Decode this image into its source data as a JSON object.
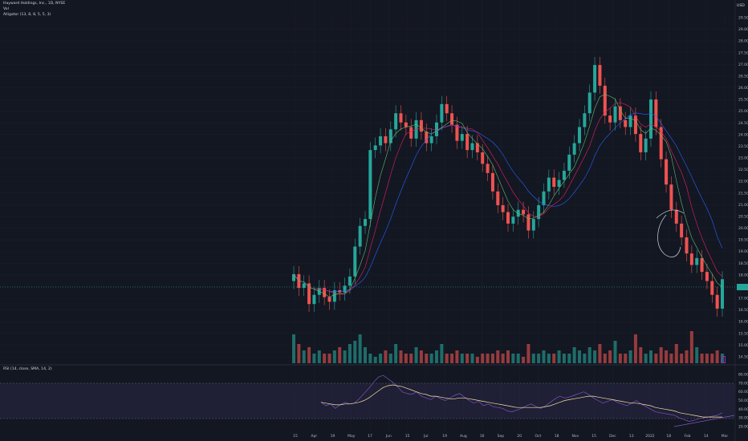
{
  "header": {
    "title": "Hayward Holdings, Inc., 1D, NYSE",
    "vol_label": "Vol",
    "alligator_label": "Alligator (13, 8, 8, 5, 5, 3)",
    "rsi_label": "RSI (14, close, SMA, 14, 2)",
    "currency": "USD"
  },
  "colors": {
    "background": "#131722",
    "up": "#26a69a",
    "down": "#ef5350",
    "jaw": "#2962ff",
    "teeth": "#e91e63",
    "lips": "#66bb6a",
    "rsi": "#7e57c2",
    "rsi_ma": "#f5e6a0"
  },
  "chart_data": [
    {
      "type": "candlestick",
      "title": "Hayward Holdings, Inc., 1D, NYSE",
      "x_ticks": [
        "15",
        "Apr",
        "19",
        "May",
        "17",
        "Jun",
        "15",
        "Jul",
        "19",
        "Aug",
        "16",
        "Sep",
        "20",
        "Oct",
        "18",
        "Nov",
        "15",
        "Dec",
        "13",
        "2022",
        "18",
        "Feb",
        "14",
        "Mar"
      ],
      "y_ticks": [
        "29.50",
        "29.00",
        "28.00",
        "27.50",
        "27.00",
        "26.50",
        "26.00",
        "25.50",
        "25.00",
        "24.50",
        "24.00",
        "23.50",
        "23.00",
        "22.50",
        "22.00",
        "21.50",
        "21.00",
        "20.50",
        "20.00",
        "19.50",
        "19.00",
        "18.50",
        "18.00",
        "17.50",
        "17.00",
        "16.50",
        "16.00",
        "15.50",
        "15.00",
        "14.50"
      ],
      "ylim": [
        14.5,
        29.5
      ],
      "last_price": 17.98,
      "annotations": [
        "hand-drawn curve near Jan 2022 peak",
        "rising support line on RSI"
      ],
      "series_close": [
        18.2,
        17.6,
        17.8,
        16.9,
        17.3,
        17.6,
        17.2,
        17.0,
        17.5,
        17.4,
        17.7,
        18.1,
        19.4,
        20.3,
        20.6,
        23.6,
        23.8,
        24.2,
        23.9,
        24.5,
        25.2,
        24.8,
        24.6,
        24.1,
        24.9,
        24.4,
        23.9,
        24.2,
        24.8,
        25.6,
        25.2,
        24.7,
        24.0,
        24.3,
        23.6,
        23.9,
        23.5,
        23.0,
        22.6,
        21.8,
        21.2,
        20.9,
        20.4,
        20.7,
        21.0,
        20.8,
        20.1,
        20.6,
        21.2,
        21.8,
        22.4,
        22.0,
        22.3,
        22.7,
        23.4,
        23.9,
        24.6,
        25.2,
        26.1,
        27.3,
        26.4,
        25.1,
        24.8,
        25.5,
        24.9,
        24.6,
        25.1,
        24.3,
        23.5,
        24.1,
        25.8,
        24.6,
        23.2,
        22.1,
        21.0,
        20.4,
        19.8,
        19.1,
        18.6,
        18.9,
        18.3,
        17.9,
        17.3,
        16.7,
        17.98
      ],
      "volume_relative": [
        0.9,
        0.6,
        0.4,
        0.5,
        0.3,
        0.4,
        0.3,
        0.3,
        0.4,
        0.5,
        0.4,
        0.6,
        0.7,
        0.9,
        0.5,
        0.3,
        0.2,
        0.3,
        0.4,
        0.3,
        0.6,
        0.4,
        0.3,
        0.3,
        0.5,
        0.4,
        0.3,
        0.3,
        0.4,
        0.6,
        0.3,
        0.3,
        0.4,
        0.3,
        0.3,
        0.3,
        0.2,
        0.3,
        0.3,
        0.3,
        0.4,
        0.3,
        0.4,
        0.3,
        0.3,
        0.2,
        0.6,
        0.3,
        0.3,
        0.4,
        0.3,
        0.3,
        0.4,
        0.3,
        0.3,
        0.5,
        0.4,
        0.3,
        0.5,
        0.4,
        0.6,
        0.3,
        0.4,
        0.7,
        0.3,
        0.3,
        0.4,
        0.9,
        0.5,
        0.3,
        0.4,
        0.3,
        0.5,
        0.4,
        0.3,
        0.6,
        0.3,
        0.4,
        1.0,
        0.5,
        0.3,
        0.3,
        0.3,
        0.4,
        0.3
      ]
    },
    {
      "type": "line",
      "title": "RSI (14, close, SMA, 14, 2)",
      "y_ticks": [
        "80.00",
        "70.00",
        "60.00",
        "50.00",
        "40.00",
        "30.00",
        "20.00"
      ],
      "ylim": [
        20,
        80
      ],
      "bands": [
        30,
        70
      ],
      "series": [
        {
          "name": "RSI",
          "values": [
            48,
            44,
            46,
            41,
            45,
            48,
            46,
            47,
            52,
            58,
            64,
            71,
            77,
            79,
            75,
            71,
            66,
            60,
            58,
            57,
            60,
            55,
            53,
            51,
            55,
            52,
            50,
            53,
            56,
            58,
            54,
            50,
            47,
            49,
            44,
            46,
            43,
            42,
            41,
            38,
            37,
            39,
            41,
            44,
            46,
            43,
            41,
            44,
            48,
            52,
            55,
            53,
            54,
            56,
            58,
            60,
            57,
            53,
            50,
            47,
            49,
            51,
            48,
            46,
            44,
            47,
            50,
            46,
            43,
            40,
            37,
            36,
            35,
            34,
            33,
            30,
            28,
            26,
            27,
            29,
            30,
            31,
            32,
            33,
            36
          ]
        },
        {
          "values": [
            48,
            47,
            46,
            45,
            45,
            46,
            46,
            47,
            48,
            50,
            53,
            57,
            61,
            65,
            67,
            68,
            67,
            66,
            64,
            62,
            60,
            58,
            57,
            55,
            55,
            54,
            53,
            52,
            52,
            53,
            53,
            52,
            51,
            50,
            49,
            48,
            47,
            46,
            45,
            44,
            43,
            42,
            42,
            42,
            42,
            42,
            42,
            43,
            44,
            46,
            48,
            50,
            51,
            52,
            53,
            54,
            55,
            55,
            54,
            53,
            52,
            51,
            50,
            49,
            48,
            47,
            47,
            46,
            45,
            44,
            42,
            41,
            40,
            39,
            38,
            36,
            35,
            34,
            33,
            32,
            31,
            31,
            31,
            31,
            31
          ]
        }
      ]
    }
  ]
}
